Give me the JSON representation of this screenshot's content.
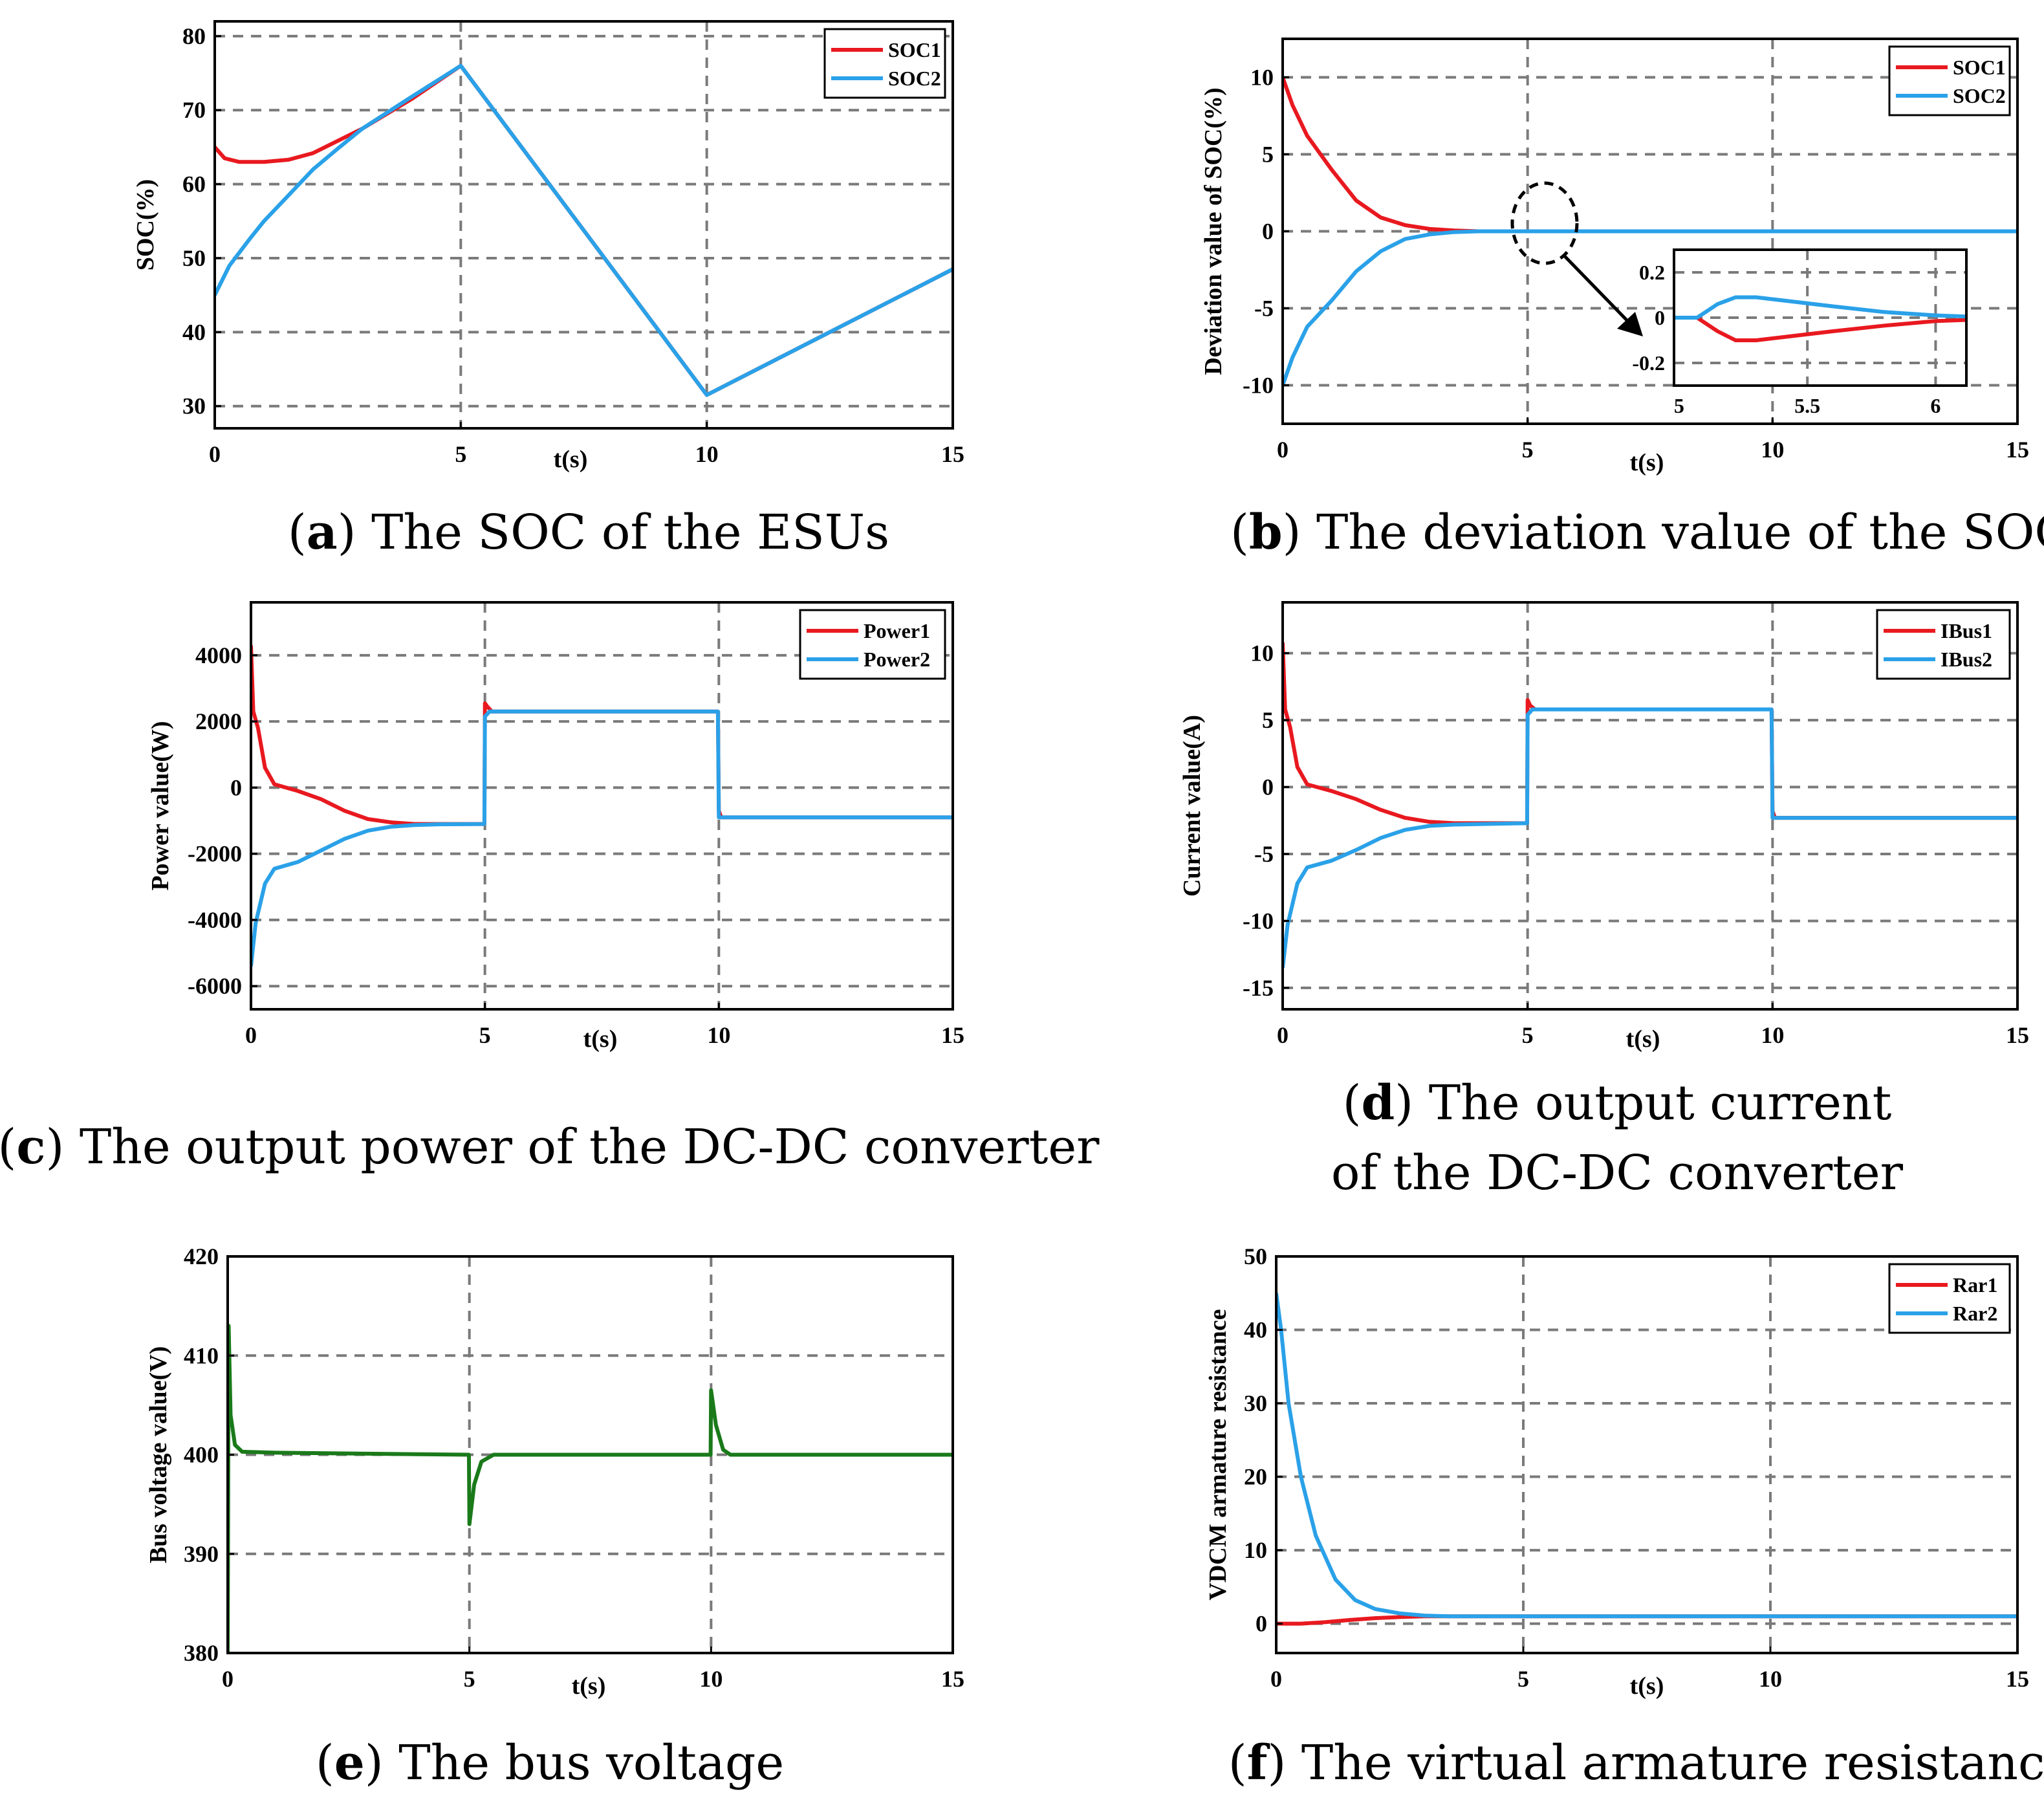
{
  "colors": {
    "series1": "#e8191f",
    "series2": "#2aa1e8",
    "voltage": "#1a7a1a"
  },
  "chart_data": [
    {
      "id": "a",
      "type": "line",
      "caption_letter": "a",
      "caption": "The SOC of the ESUs",
      "xlabel": "t(s)",
      "ylabel": "SOC(%)",
      "xlim": [
        0,
        15
      ],
      "ylim": [
        27,
        82
      ],
      "xticks": [
        0,
        5,
        10,
        15
      ],
      "yticks": [
        30,
        40,
        50,
        60,
        70,
        80
      ],
      "xgrid": [
        5,
        10
      ],
      "ygrid": [
        30,
        40,
        50,
        60,
        70,
        80
      ],
      "legend": "top-right",
      "series": [
        {
          "name": "SOC1",
          "color": "series1",
          "points": [
            [
              0,
              65
            ],
            [
              0.2,
              63.5
            ],
            [
              0.5,
              63
            ],
            [
              1,
              63
            ],
            [
              1.5,
              63.3
            ],
            [
              2,
              64.2
            ],
            [
              3,
              67.5
            ],
            [
              4,
              71.5
            ],
            [
              5,
              76
            ],
            [
              10,
              31.5
            ],
            [
              15,
              48.5
            ]
          ]
        },
        {
          "name": "SOC2",
          "color": "series2",
          "points": [
            [
              0,
              45
            ],
            [
              0.3,
              49
            ],
            [
              0.7,
              52.5
            ],
            [
              1,
              55
            ],
            [
              1.5,
              58.5
            ],
            [
              2,
              62
            ],
            [
              2.5,
              64.8
            ],
            [
              3,
              67.5
            ],
            [
              4,
              71.8
            ],
            [
              5,
              76
            ],
            [
              10,
              31.5
            ],
            [
              15,
              48.5
            ]
          ]
        }
      ]
    },
    {
      "id": "b",
      "type": "line",
      "caption_letter": "b",
      "caption": "The deviation value of the SOC",
      "xlabel": "t(s)",
      "ylabel": "Deviation value of SOC(%)",
      "xlim": [
        0,
        15
      ],
      "ylim": [
        -12.5,
        12.5
      ],
      "xticks": [
        0,
        5,
        10,
        15
      ],
      "yticks": [
        -10,
        -5,
        0,
        5,
        10
      ],
      "xgrid": [
        5,
        10
      ],
      "ygrid": [
        -10,
        -5,
        0,
        5,
        10
      ],
      "legend": "top-right",
      "series": [
        {
          "name": "SOC1",
          "color": "series1",
          "points": [
            [
              0,
              10
            ],
            [
              0.2,
              8.2
            ],
            [
              0.5,
              6.2
            ],
            [
              1,
              4
            ],
            [
              1.5,
              2
            ],
            [
              2,
              0.9
            ],
            [
              2.5,
              0.4
            ],
            [
              3,
              0.15
            ],
            [
              3.5,
              0.05
            ],
            [
              4,
              0
            ],
            [
              15,
              0
            ]
          ]
        },
        {
          "name": "SOC2",
          "color": "series2",
          "points": [
            [
              0,
              -10
            ],
            [
              0.2,
              -8.2
            ],
            [
              0.5,
              -6.2
            ],
            [
              1,
              -4.5
            ],
            [
              1.5,
              -2.6
            ],
            [
              2,
              -1.3
            ],
            [
              2.5,
              -0.5
            ],
            [
              3,
              -0.2
            ],
            [
              3.5,
              -0.05
            ],
            [
              4,
              0
            ],
            [
              15,
              0
            ]
          ]
        }
      ],
      "inset": {
        "xlim": [
          4.98,
          6.12
        ],
        "ylim": [
          -0.3,
          0.3
        ],
        "xticks": [
          5,
          5.5,
          6
        ],
        "yticks": [
          0.2,
          0,
          -0.2
        ],
        "xgrid": [
          5.5,
          6
        ],
        "ygrid": [
          0.2,
          0,
          -0.2
        ],
        "series": [
          {
            "name": "SOC1",
            "color": "series1",
            "points": [
              [
                4.98,
                0
              ],
              [
                5.07,
                0
              ],
              [
                5.15,
                -0.06
              ],
              [
                5.22,
                -0.1
              ],
              [
                5.3,
                -0.1
              ],
              [
                5.45,
                -0.08
              ],
              [
                5.6,
                -0.06
              ],
              [
                5.8,
                -0.035
              ],
              [
                6,
                -0.015
              ],
              [
                6.12,
                -0.01
              ]
            ]
          },
          {
            "name": "SOC2",
            "color": "series2",
            "points": [
              [
                4.98,
                0
              ],
              [
                5.07,
                0
              ],
              [
                5.15,
                0.06
              ],
              [
                5.22,
                0.09
              ],
              [
                5.3,
                0.09
              ],
              [
                5.45,
                0.07
              ],
              [
                5.6,
                0.05
              ],
              [
                5.8,
                0.025
              ],
              [
                6,
                0.01
              ],
              [
                6.12,
                0.005
              ]
            ]
          }
        ]
      }
    },
    {
      "id": "c",
      "type": "line",
      "caption_letter": "c",
      "caption": "The output power of the DC-DC converter",
      "xlabel": "t(s)",
      "ylabel": "Power value(W)",
      "xlim": [
        0,
        15
      ],
      "ylim": [
        -6700,
        5600
      ],
      "xticks": [
        0,
        5,
        10,
        15
      ],
      "yticks": [
        -6000,
        -4000,
        -2000,
        0,
        2000,
        4000
      ],
      "xgrid": [
        5,
        10
      ],
      "ygrid": [
        -6000,
        -4000,
        -2000,
        0,
        2000,
        4000
      ],
      "legend": "top-right",
      "series": [
        {
          "name": "Power1",
          "color": "series1",
          "points": [
            [
              0,
              4300
            ],
            [
              0.05,
              2300
            ],
            [
              0.15,
              1800
            ],
            [
              0.3,
              600
            ],
            [
              0.5,
              100
            ],
            [
              1,
              -100
            ],
            [
              1.5,
              -350
            ],
            [
              2,
              -700
            ],
            [
              2.5,
              -950
            ],
            [
              3,
              -1050
            ],
            [
              3.5,
              -1100
            ],
            [
              4,
              -1100
            ],
            [
              4.99,
              -1100
            ],
            [
              5,
              2550
            ],
            [
              5.05,
              2450
            ],
            [
              5.15,
              2300
            ],
            [
              9.98,
              2300
            ],
            [
              10,
              -700
            ],
            [
              10.05,
              -900
            ],
            [
              15,
              -900
            ]
          ]
        },
        {
          "name": "Power2",
          "color": "series2",
          "points": [
            [
              0,
              -5400
            ],
            [
              0.1,
              -4100
            ],
            [
              0.3,
              -2900
            ],
            [
              0.5,
              -2450
            ],
            [
              1,
              -2250
            ],
            [
              1.5,
              -1900
            ],
            [
              2,
              -1550
            ],
            [
              2.5,
              -1300
            ],
            [
              3,
              -1180
            ],
            [
              3.5,
              -1130
            ],
            [
              4,
              -1110
            ],
            [
              4.99,
              -1100
            ],
            [
              5,
              2150
            ],
            [
              5.1,
              2300
            ],
            [
              9.98,
              2300
            ],
            [
              10,
              -900
            ],
            [
              15,
              -900
            ]
          ]
        }
      ]
    },
    {
      "id": "d",
      "type": "line",
      "caption_letter": "d",
      "caption_lines": [
        "The output current",
        "of the DC-DC converter"
      ],
      "xlabel": "t(s)",
      "ylabel": "Current value(A)",
      "xlim": [
        0,
        15
      ],
      "ylim": [
        -16.6,
        13.8
      ],
      "xticks": [
        0,
        5,
        10,
        15
      ],
      "yticks": [
        -15,
        -10,
        -5,
        0,
        5,
        10
      ],
      "xgrid": [
        5,
        10
      ],
      "ygrid": [
        -15,
        -10,
        -5,
        0,
        5,
        10
      ],
      "legend": "top-right",
      "series": [
        {
          "name": "IBus1",
          "color": "series1",
          "points": [
            [
              0,
              10.8
            ],
            [
              0.05,
              5.8
            ],
            [
              0.15,
              4.5
            ],
            [
              0.3,
              1.5
            ],
            [
              0.5,
              0.2
            ],
            [
              1,
              -0.3
            ],
            [
              1.5,
              -0.9
            ],
            [
              2,
              -1.7
            ],
            [
              2.5,
              -2.3
            ],
            [
              3,
              -2.6
            ],
            [
              3.5,
              -2.7
            ],
            [
              4.99,
              -2.7
            ],
            [
              5,
              6.5
            ],
            [
              5.05,
              6.1
            ],
            [
              5.15,
              5.8
            ],
            [
              9.98,
              5.8
            ],
            [
              10,
              -1.8
            ],
            [
              10.05,
              -2.3
            ],
            [
              15,
              -2.3
            ]
          ]
        },
        {
          "name": "IBus2",
          "color": "series2",
          "points": [
            [
              0,
              -13.5
            ],
            [
              0.1,
              -10.3
            ],
            [
              0.3,
              -7.2
            ],
            [
              0.5,
              -6
            ],
            [
              1,
              -5.5
            ],
            [
              1.5,
              -4.7
            ],
            [
              2,
              -3.8
            ],
            [
              2.5,
              -3.2
            ],
            [
              3,
              -2.9
            ],
            [
              3.5,
              -2.8
            ],
            [
              4.99,
              -2.7
            ],
            [
              5,
              5.4
            ],
            [
              5.1,
              5.8
            ],
            [
              9.98,
              5.8
            ],
            [
              10,
              -2.3
            ],
            [
              15,
              -2.3
            ]
          ]
        }
      ]
    },
    {
      "id": "e",
      "type": "line",
      "caption_letter": "e",
      "caption": "The bus voltage",
      "xlabel": "t(s)",
      "ylabel": "Bus voltage value(V)",
      "xlim": [
        0,
        15
      ],
      "ylim": [
        380,
        420
      ],
      "xticks": [
        0,
        5,
        10,
        15
      ],
      "yticks": [
        380,
        390,
        400,
        410,
        420
      ],
      "xgrid": [
        5,
        10
      ],
      "ygrid": [
        390,
        400,
        410
      ],
      "legend": "none",
      "series": [
        {
          "name": "Bus voltage",
          "color": "voltage",
          "points": [
            [
              0,
              380
            ],
            [
              0.02,
              413
            ],
            [
              0.06,
              404
            ],
            [
              0.15,
              401
            ],
            [
              0.3,
              400.3
            ],
            [
              1,
              400.2
            ],
            [
              4.99,
              400
            ],
            [
              5,
              393
            ],
            [
              5.1,
              397
            ],
            [
              5.25,
              399.3
            ],
            [
              5.5,
              400
            ],
            [
              9.99,
              400
            ],
            [
              10,
              406.5
            ],
            [
              10.1,
              403
            ],
            [
              10.25,
              400.5
            ],
            [
              10.4,
              400
            ],
            [
              15,
              400
            ]
          ]
        }
      ]
    },
    {
      "id": "f",
      "type": "line",
      "caption_letter": "f",
      "caption": "The virtual armature resistance",
      "xlabel": "t(s)",
      "ylabel": "VDCM armature resistance",
      "xlim": [
        0,
        15
      ],
      "ylim": [
        -4,
        50
      ],
      "xticks": [
        0,
        5,
        10,
        15
      ],
      "yticks": [
        0,
        10,
        20,
        30,
        40,
        50
      ],
      "xgrid": [
        5,
        10
      ],
      "ygrid": [
        0,
        10,
        20,
        30,
        40
      ],
      "legend": "top-right",
      "series": [
        {
          "name": "Rar1",
          "color": "series1",
          "points": [
            [
              0,
              0
            ],
            [
              0.5,
              0
            ],
            [
              1,
              0.2
            ],
            [
              1.5,
              0.5
            ],
            [
              2,
              0.75
            ],
            [
              2.5,
              0.9
            ],
            [
              3,
              1
            ],
            [
              15,
              1
            ]
          ]
        },
        {
          "name": "Rar2",
          "color": "series2",
          "points": [
            [
              0,
              45
            ],
            [
              0.1,
              40
            ],
            [
              0.25,
              30
            ],
            [
              0.5,
              20
            ],
            [
              0.8,
              12
            ],
            [
              1.2,
              6
            ],
            [
              1.6,
              3.2
            ],
            [
              2,
              2
            ],
            [
              2.5,
              1.4
            ],
            [
              3,
              1.1
            ],
            [
              3.5,
              1
            ],
            [
              15,
              1
            ]
          ]
        }
      ]
    }
  ]
}
